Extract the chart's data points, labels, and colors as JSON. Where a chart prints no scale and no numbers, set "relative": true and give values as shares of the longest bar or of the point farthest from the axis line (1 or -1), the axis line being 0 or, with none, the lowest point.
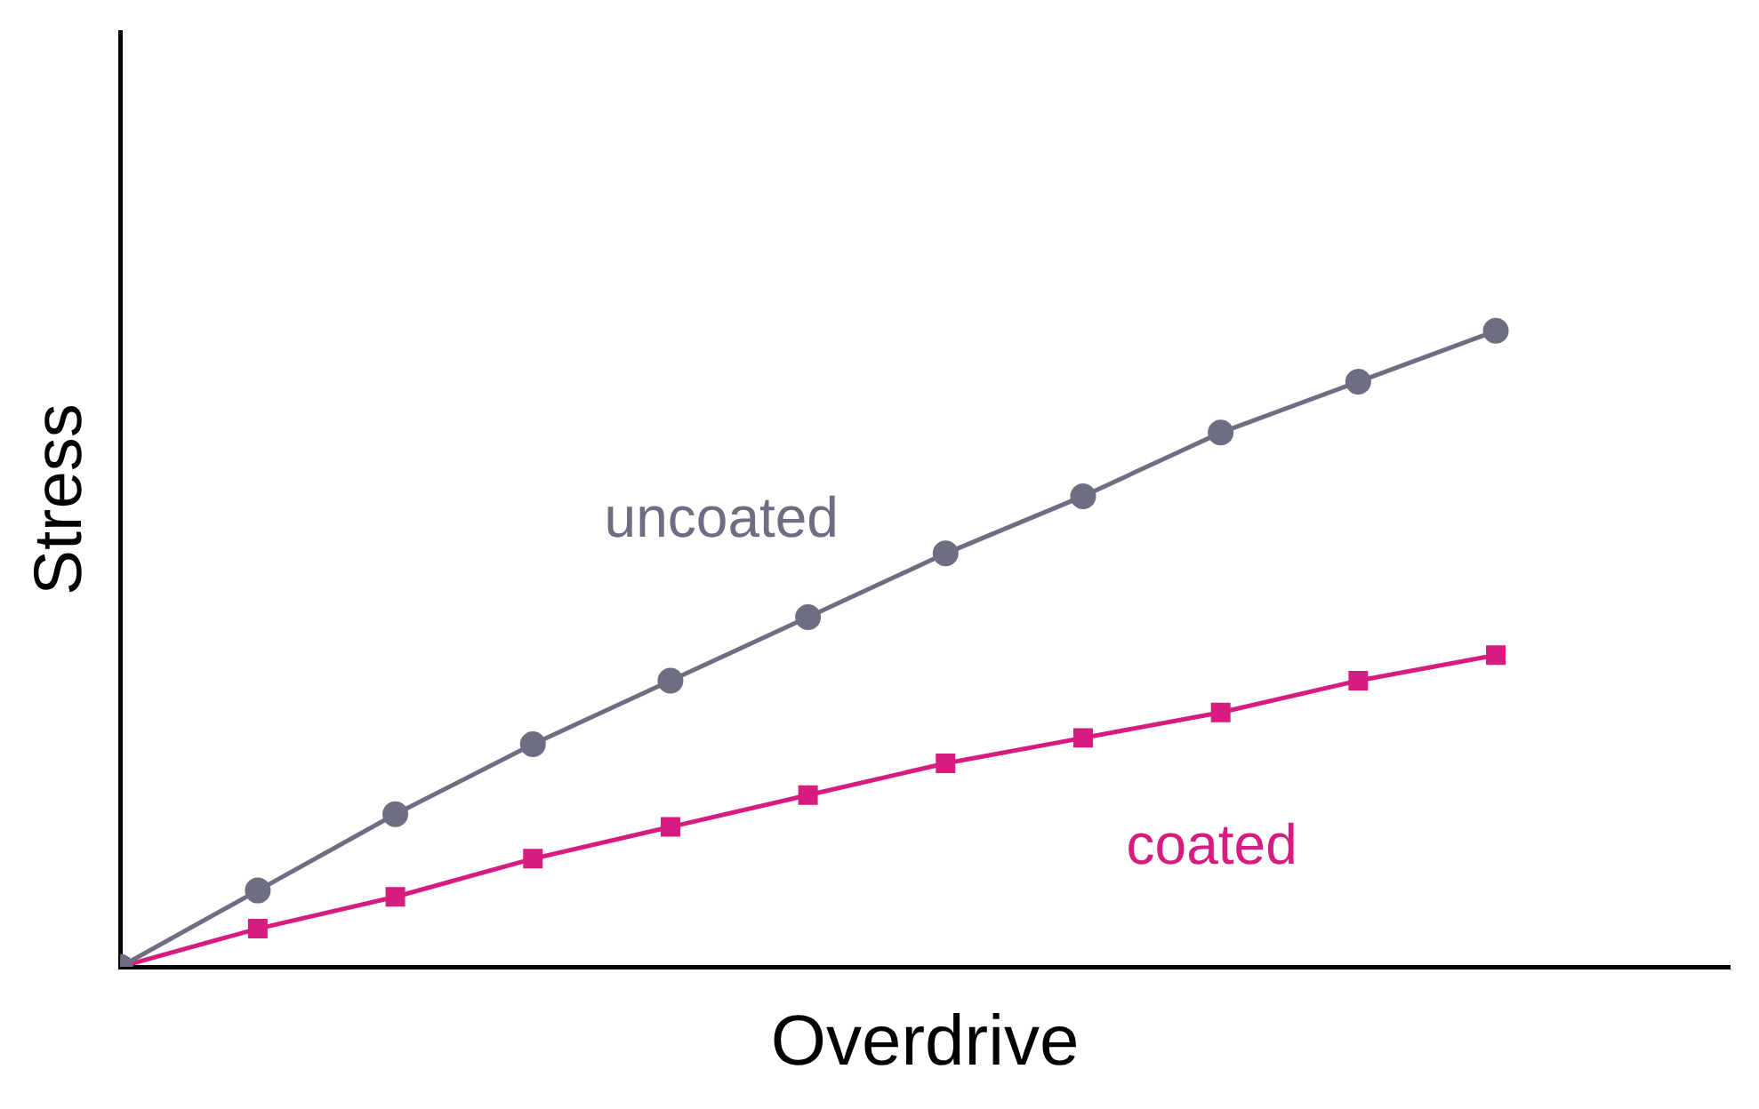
{
  "chart_data": {
    "type": "line",
    "xlabel": "Overdrive",
    "ylabel": "Stress",
    "relative": true,
    "categories": [
      null,
      null,
      null,
      null,
      null,
      null,
      null,
      null,
      null,
      null,
      null
    ],
    "legend": false,
    "grid": false,
    "tick_labels": false,
    "series": [
      {
        "name": "uncoated",
        "color": "#6e6e82",
        "marker": "circle",
        "values": [
          0,
          0.12,
          0.24,
          0.35,
          0.45,
          0.55,
          0.65,
          0.74,
          0.84,
          0.92,
          1
        ]
      },
      {
        "name": "coated",
        "color": "#d81b7f",
        "marker": "square",
        "values": [
          0,
          0.06,
          0.11,
          0.17,
          0.22,
          0.27,
          0.32,
          0.36,
          0.4,
          0.45,
          0.49
        ]
      }
    ]
  }
}
